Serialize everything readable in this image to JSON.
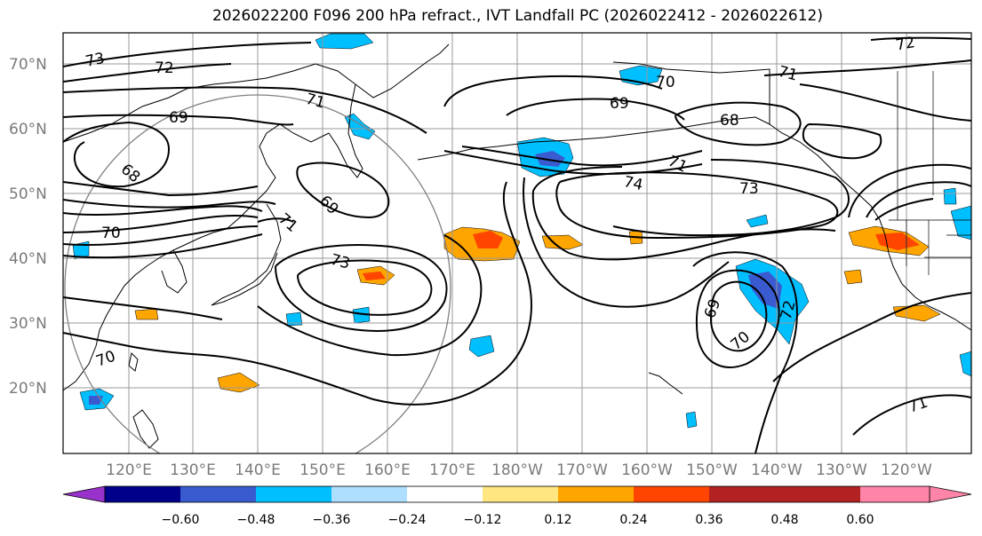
{
  "title": "2026022200 F096 200 hPa refract., IVT Landfall PC (2026022412 - 2026022612)",
  "lat_labels": [
    "70°N",
    "60°N",
    "50°N",
    "40°N",
    "30°N",
    "20°N"
  ],
  "lon_labels": [
    "120°E",
    "130°E",
    "140°E",
    "150°E",
    "160°E",
    "170°E",
    "180°W",
    "170°W",
    "160°W",
    "150°W",
    "140°W",
    "130°W",
    "120°W"
  ],
  "contour_labels": [
    "73",
    "72",
    "71",
    "69",
    "68",
    "70",
    "69",
    "71",
    "73",
    "70",
    "69",
    "71",
    "74",
    "73",
    "68",
    "69",
    "70",
    "71",
    "72",
    "72",
    "70",
    "71"
  ],
  "colorbar": {
    "ticks": [
      "−0.60",
      "−0.48",
      "−0.36",
      "−0.24",
      "−0.12",
      "0.12",
      "0.24",
      "0.36",
      "0.48",
      "0.60"
    ],
    "colors": [
      "#9932cc",
      "#00008b",
      "#3a5bd0",
      "#00bfff",
      "#aedfff",
      "#ffffff",
      "#ffe680",
      "#ffa500",
      "#ff4500",
      "#b22222",
      "#ff85a8"
    ]
  }
}
